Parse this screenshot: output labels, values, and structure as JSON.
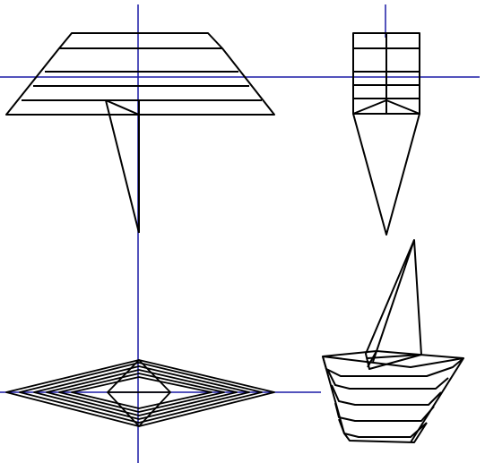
{
  "colors": {
    "background": "#ffffff",
    "axis": "#1a1aa6",
    "wireframe": "#000000"
  },
  "views": [
    {
      "id": "front",
      "projection": "front"
    },
    {
      "id": "side",
      "projection": "side"
    },
    {
      "id": "top",
      "projection": "top"
    },
    {
      "id": "perspective",
      "projection": "3d"
    }
  ]
}
